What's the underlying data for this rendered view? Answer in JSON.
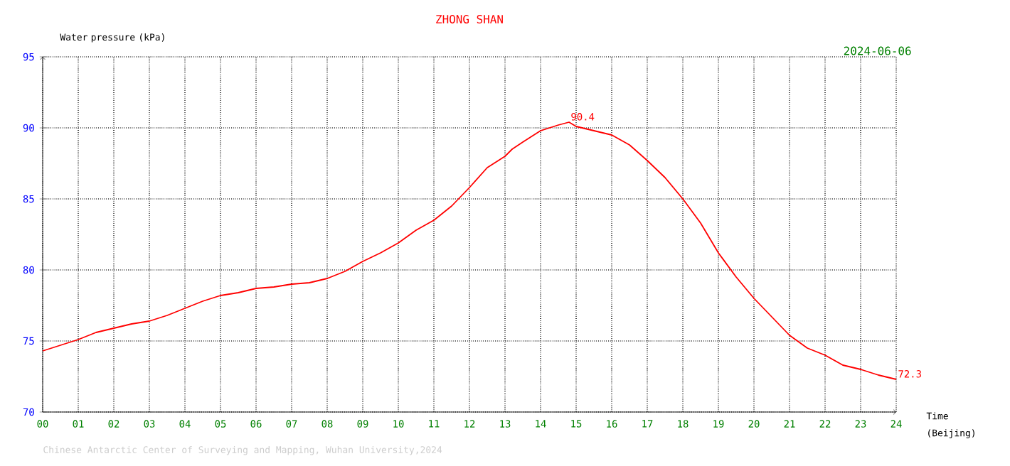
{
  "chart_data": {
    "type": "line",
    "title": "ZHONG SHAN",
    "xlabel": "Time (Beijing)",
    "ylabel": "Water pressure (kPa)",
    "x": [
      0,
      0.5,
      1,
      1.5,
      2,
      2.5,
      3,
      3.5,
      4,
      4.5,
      5,
      5.5,
      6,
      6.5,
      7,
      7.5,
      8,
      8.5,
      9,
      9.5,
      10,
      10.5,
      11,
      11.5,
      12,
      12.5,
      13,
      13.2,
      13.5,
      14,
      14.5,
      14.8,
      15,
      15.5,
      16,
      16.5,
      17,
      17.5,
      18,
      18.5,
      19,
      19.5,
      20,
      20.5,
      21,
      21.5,
      22,
      22.5,
      23,
      23.5,
      24
    ],
    "values": [
      74.3,
      74.7,
      75.1,
      75.6,
      75.9,
      76.2,
      76.4,
      76.8,
      77.3,
      77.8,
      78.2,
      78.4,
      78.7,
      78.8,
      79.0,
      79.1,
      79.4,
      79.9,
      80.6,
      81.2,
      81.9,
      82.8,
      83.5,
      84.5,
      85.8,
      87.2,
      88.0,
      88.5,
      89.0,
      89.8,
      90.2,
      90.4,
      90.1,
      89.8,
      89.5,
      88.8,
      87.7,
      86.5,
      85.0,
      83.3,
      81.2,
      79.5,
      78.0,
      76.7,
      75.4,
      74.5,
      74.0,
      73.3,
      73.0,
      72.6,
      72.3
    ],
    "color": "#ff0000",
    "xlim": [
      0,
      24
    ],
    "ylim": [
      70,
      95
    ],
    "xticks": [
      {
        "value": 0,
        "label": "00"
      },
      {
        "value": 1,
        "label": "01"
      },
      {
        "value": 2,
        "label": "02"
      },
      {
        "value": 3,
        "label": "03"
      },
      {
        "value": 4,
        "label": "04"
      },
      {
        "value": 5,
        "label": "05"
      },
      {
        "value": 6,
        "label": "06"
      },
      {
        "value": 7,
        "label": "07"
      },
      {
        "value": 8,
        "label": "08"
      },
      {
        "value": 9,
        "label": "09"
      },
      10,
      11,
      12,
      13,
      14,
      15,
      16,
      17,
      18,
      19,
      20,
      21,
      22,
      23,
      24
    ],
    "yticks": [
      70,
      75,
      80,
      85,
      90,
      95
    ],
    "grid": true,
    "marker": "none",
    "annotations": [
      {
        "text": "90.4",
        "x": 14.8,
        "y": 90.4
      },
      {
        "text": "72.3",
        "x": 24,
        "y": 72.3
      },
      "2024-06-06",
      "Chinese Antarctic Center of Surveying and Mapping, Wuhan University,2024"
    ]
  }
}
